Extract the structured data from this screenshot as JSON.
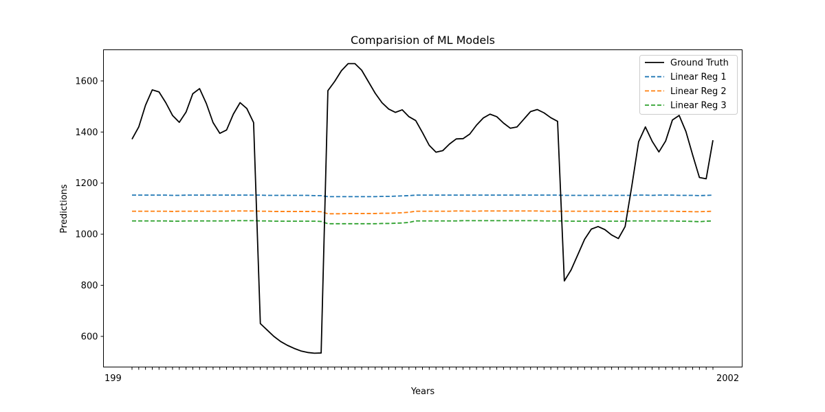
{
  "chart_data": {
    "type": "line",
    "title": "Comparision of ML Models",
    "xlabel": "Years",
    "ylabel": "Predictions",
    "ylim": [
      480,
      1722
    ],
    "y_ticks": [
      600,
      800,
      1000,
      1200,
      1400,
      1600
    ],
    "grid": false,
    "legend_position": "top-right",
    "x_first_label": "199",
    "x_last_label": "2002",
    "series": [
      {
        "name": "Ground Truth",
        "style": "solid",
        "color": "#000000",
        "values": [
          1372,
          1420,
          1505,
          1565,
          1557,
          1515,
          1465,
          1438,
          1478,
          1550,
          1570,
          1512,
          1437,
          1395,
          1408,
          1470,
          1515,
          1492,
          1437,
          650,
          625,
          600,
          580,
          565,
          553,
          543,
          537,
          534,
          535,
          1562,
          1598,
          1640,
          1668,
          1668,
          1642,
          1597,
          1552,
          1515,
          1490,
          1477,
          1487,
          1460,
          1445,
          1398,
          1348,
          1321,
          1327,
          1353,
          1373,
          1374,
          1392,
          1427,
          1455,
          1470,
          1460,
          1435,
          1415,
          1420,
          1450,
          1480,
          1488,
          1475,
          1456,
          1442,
          817,
          860,
          920,
          980,
          1020,
          1030,
          1018,
          997,
          983,
          1030,
          1190,
          1362,
          1420,
          1364,
          1322,
          1365,
          1447,
          1465,
          1402,
          1310,
          1222,
          1217,
          1368
        ]
      },
      {
        "name": "Linear Reg 1",
        "style": "dashed",
        "color": "#1f77b4",
        "values": [
          1153,
          1153,
          1153,
          1153,
          1153,
          1153,
          1152,
          1152,
          1153,
          1153,
          1153,
          1153,
          1153,
          1153,
          1153,
          1153,
          1153,
          1153,
          1153,
          1153,
          1152,
          1152,
          1152,
          1152,
          1152,
          1152,
          1152,
          1151,
          1151,
          1147,
          1147,
          1147,
          1147,
          1147,
          1147,
          1147,
          1147,
          1148,
          1148,
          1149,
          1150,
          1151,
          1153,
          1153,
          1153,
          1153,
          1153,
          1153,
          1153,
          1153,
          1153,
          1153,
          1153,
          1153,
          1153,
          1153,
          1153,
          1153,
          1153,
          1153,
          1153,
          1153,
          1153,
          1153,
          1152,
          1152,
          1152,
          1152,
          1152,
          1152,
          1152,
          1152,
          1152,
          1152,
          1152,
          1153,
          1153,
          1152,
          1153,
          1153,
          1153,
          1152,
          1152,
          1152,
          1151,
          1152,
          1153
        ]
      },
      {
        "name": "Linear Reg 2",
        "style": "dashed",
        "color": "#ff7f0e",
        "values": [
          1090,
          1090,
          1090,
          1090,
          1090,
          1090,
          1089,
          1090,
          1090,
          1090,
          1090,
          1090,
          1090,
          1090,
          1090,
          1091,
          1091,
          1091,
          1091,
          1090,
          1090,
          1089,
          1089,
          1089,
          1089,
          1089,
          1089,
          1089,
          1088,
          1080,
          1080,
          1080,
          1081,
          1081,
          1081,
          1081,
          1081,
          1082,
          1082,
          1083,
          1084,
          1086,
          1090,
          1090,
          1090,
          1090,
          1090,
          1090,
          1091,
          1091,
          1090,
          1090,
          1091,
          1091,
          1091,
          1091,
          1091,
          1091,
          1091,
          1091,
          1091,
          1090,
          1090,
          1090,
          1090,
          1090,
          1090,
          1090,
          1090,
          1090,
          1090,
          1089,
          1089,
          1089,
          1090,
          1090,
          1090,
          1090,
          1090,
          1090,
          1090,
          1089,
          1089,
          1088,
          1088,
          1089,
          1090
        ]
      },
      {
        "name": "Linear Reg 3",
        "style": "dashed",
        "color": "#2ca02c",
        "values": [
          1052,
          1052,
          1052,
          1052,
          1052,
          1052,
          1051,
          1051,
          1052,
          1052,
          1052,
          1052,
          1052,
          1052,
          1052,
          1053,
          1053,
          1053,
          1053,
          1052,
          1052,
          1051,
          1051,
          1051,
          1051,
          1051,
          1051,
          1051,
          1050,
          1041,
          1041,
          1041,
          1041,
          1041,
          1041,
          1041,
          1041,
          1042,
          1042,
          1043,
          1044,
          1046,
          1052,
          1052,
          1052,
          1052,
          1052,
          1052,
          1052,
          1053,
          1053,
          1053,
          1053,
          1053,
          1053,
          1053,
          1053,
          1053,
          1053,
          1053,
          1053,
          1052,
          1052,
          1052,
          1052,
          1051,
          1051,
          1051,
          1051,
          1051,
          1051,
          1051,
          1051,
          1051,
          1052,
          1052,
          1052,
          1052,
          1052,
          1052,
          1052,
          1051,
          1051,
          1050,
          1049,
          1051,
          1052
        ]
      }
    ]
  }
}
